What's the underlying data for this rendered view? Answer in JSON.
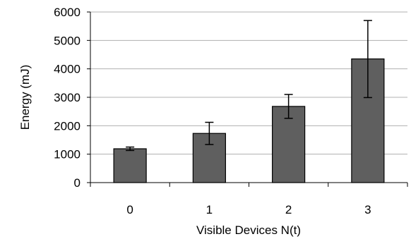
{
  "chart_data": {
    "type": "bar",
    "title": "",
    "xlabel": "Visible Devices N(t)",
    "ylabel": "Energy (mJ)",
    "categories": [
      "0",
      "1",
      "2",
      "3"
    ],
    "values": [
      1190,
      1730,
      2680,
      4350
    ],
    "error_low": [
      1130,
      1340,
      2260,
      2990
    ],
    "error_high": [
      1250,
      2120,
      3100,
      5700
    ],
    "ylim": [
      0,
      6000
    ],
    "yticks": [
      0,
      1000,
      2000,
      3000,
      4000,
      5000,
      6000
    ],
    "ytick_labels": [
      "0",
      "1000",
      "2000",
      "3000",
      "4000",
      "5000",
      "6000"
    ],
    "grid": true,
    "legend": "none",
    "bar_color": "#5f5f5f"
  }
}
